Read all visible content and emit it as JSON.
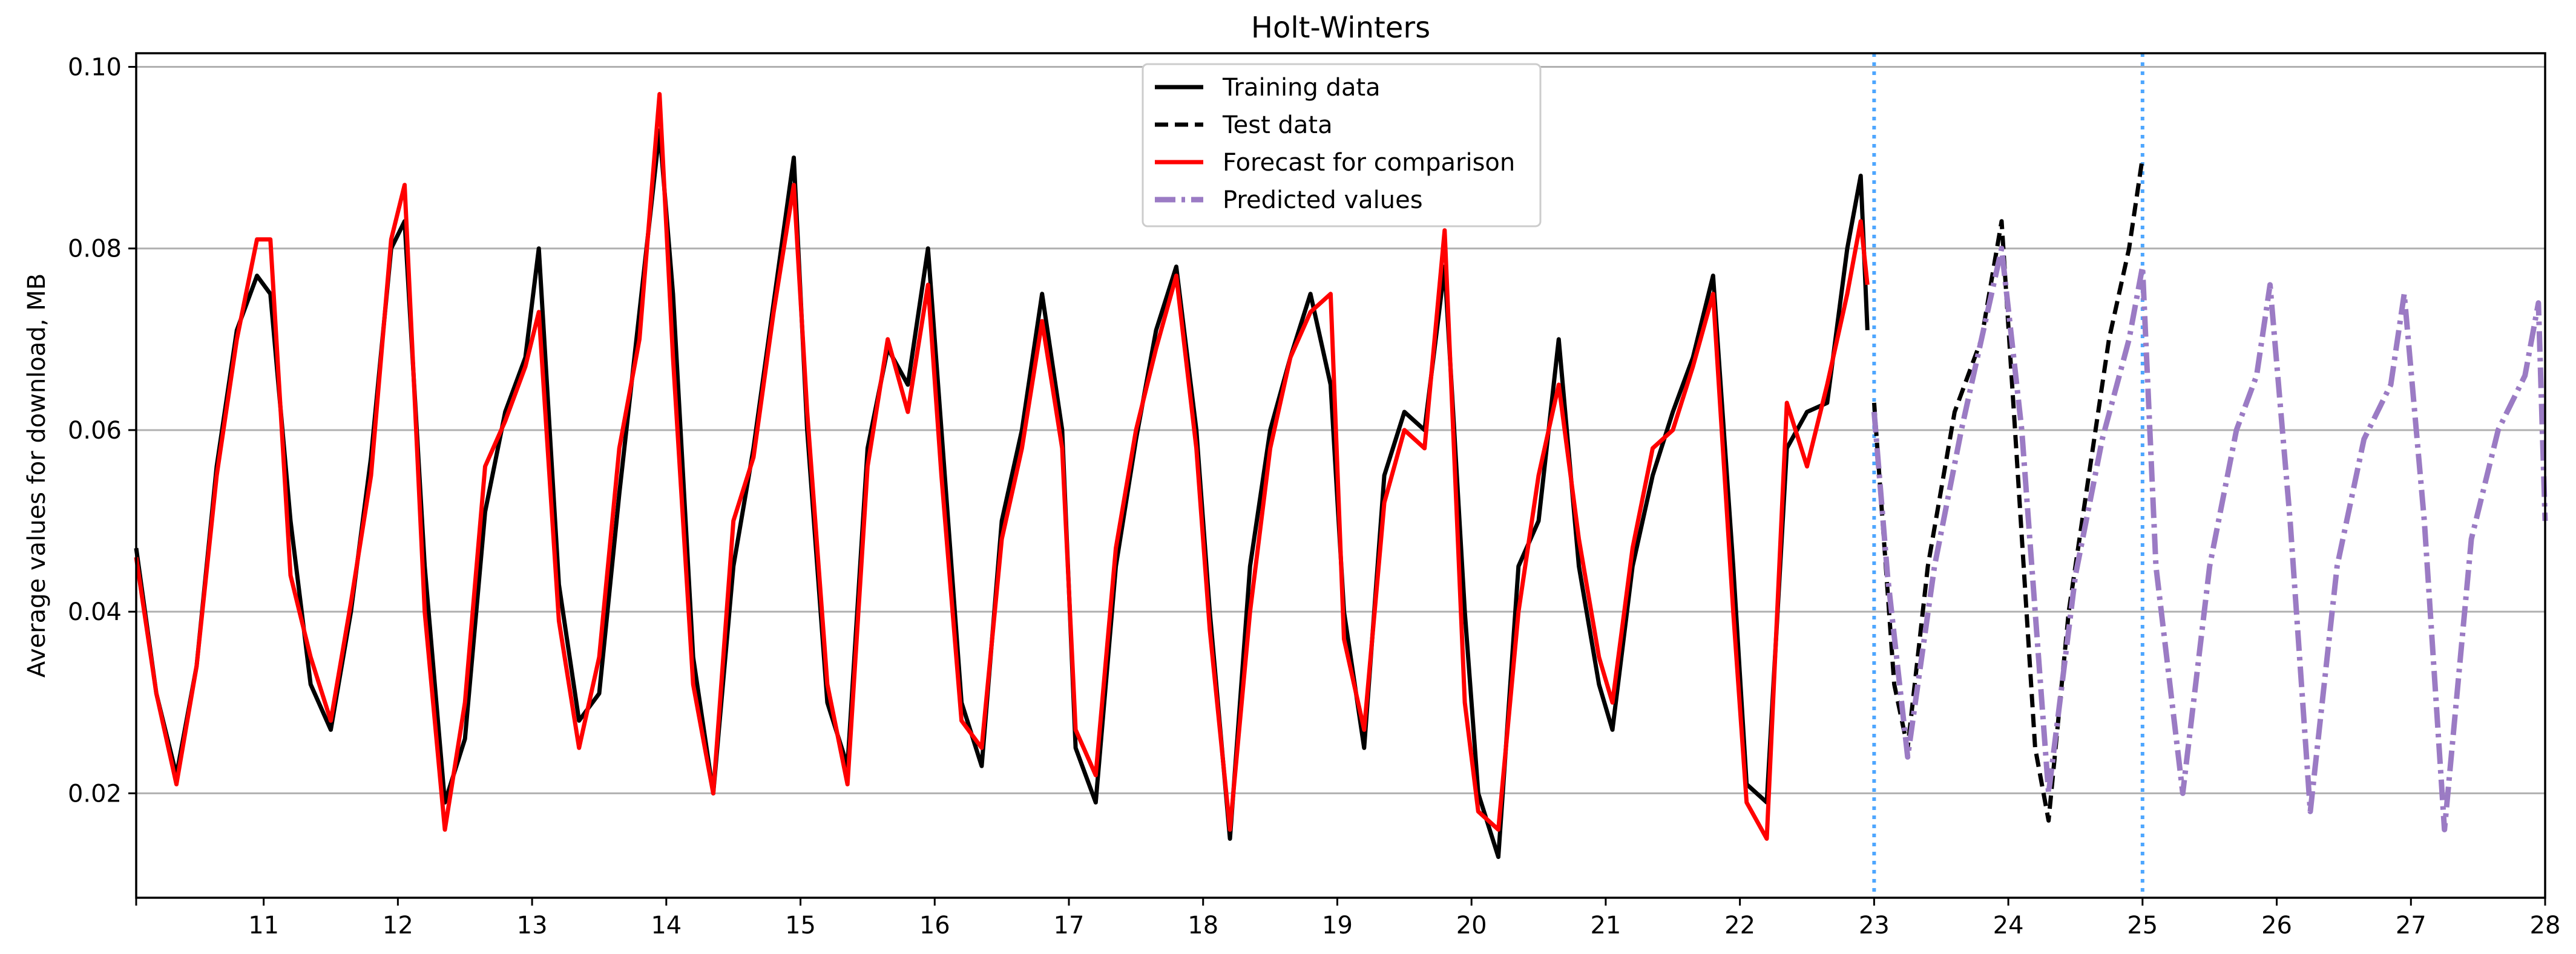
{
  "chart_data": {
    "type": "line",
    "title": "Holt-Winters",
    "xlabel": "",
    "ylabel": "Average values for download, MB",
    "xlim": [
      10.05,
      28
    ],
    "ylim": [
      0.0085,
      0.1015
    ],
    "xticks": [
      11,
      12,
      13,
      14,
      15,
      16,
      17,
      18,
      19,
      20,
      21,
      22,
      23,
      24,
      25,
      26,
      27,
      28
    ],
    "yticks": [
      0.02,
      0.04,
      0.06,
      0.08,
      0.1
    ],
    "ytick_labels": [
      "0.02",
      "0.04",
      "0.06",
      "0.08",
      "0.10"
    ],
    "grid": "horizontal",
    "legend_position": "upper center",
    "vlines": [
      {
        "x": 23.0,
        "color": "#4da6ff",
        "style": "dotted"
      },
      {
        "x": 25.0,
        "color": "#4da6ff",
        "style": "dotted"
      }
    ],
    "series": [
      {
        "name": "Training data",
        "color": "#000000",
        "style": "solid",
        "points": [
          [
            10.05,
            0.047
          ],
          [
            10.2,
            0.031
          ],
          [
            10.35,
            0.022
          ],
          [
            10.5,
            0.034
          ],
          [
            10.65,
            0.056
          ],
          [
            10.8,
            0.071
          ],
          [
            10.95,
            0.077
          ],
          [
            11.05,
            0.075
          ],
          [
            11.2,
            0.05
          ],
          [
            11.35,
            0.032
          ],
          [
            11.5,
            0.027
          ],
          [
            11.65,
            0.04
          ],
          [
            11.8,
            0.057
          ],
          [
            11.95,
            0.08
          ],
          [
            12.05,
            0.083
          ],
          [
            12.2,
            0.045
          ],
          [
            12.35,
            0.019
          ],
          [
            12.5,
            0.026
          ],
          [
            12.65,
            0.051
          ],
          [
            12.8,
            0.062
          ],
          [
            12.95,
            0.068
          ],
          [
            13.05,
            0.08
          ],
          [
            13.2,
            0.043
          ],
          [
            13.35,
            0.028
          ],
          [
            13.5,
            0.031
          ],
          [
            13.65,
            0.053
          ],
          [
            13.8,
            0.073
          ],
          [
            13.95,
            0.093
          ],
          [
            14.05,
            0.075
          ],
          [
            14.2,
            0.035
          ],
          [
            14.35,
            0.02
          ],
          [
            14.5,
            0.045
          ],
          [
            14.65,
            0.058
          ],
          [
            14.8,
            0.074
          ],
          [
            14.95,
            0.09
          ],
          [
            15.05,
            0.06
          ],
          [
            15.2,
            0.03
          ],
          [
            15.35,
            0.023
          ],
          [
            15.5,
            0.058
          ],
          [
            15.65,
            0.069
          ],
          [
            15.8,
            0.065
          ],
          [
            15.95,
            0.08
          ],
          [
            16.05,
            0.06
          ],
          [
            16.2,
            0.03
          ],
          [
            16.35,
            0.023
          ],
          [
            16.5,
            0.05
          ],
          [
            16.65,
            0.06
          ],
          [
            16.8,
            0.075
          ],
          [
            16.95,
            0.06
          ],
          [
            17.05,
            0.025
          ],
          [
            17.2,
            0.019
          ],
          [
            17.35,
            0.045
          ],
          [
            17.5,
            0.059
          ],
          [
            17.65,
            0.071
          ],
          [
            17.8,
            0.078
          ],
          [
            17.95,
            0.06
          ],
          [
            18.05,
            0.04
          ],
          [
            18.2,
            0.015
          ],
          [
            18.35,
            0.045
          ],
          [
            18.5,
            0.06
          ],
          [
            18.65,
            0.068
          ],
          [
            18.8,
            0.075
          ],
          [
            18.95,
            0.065
          ],
          [
            19.05,
            0.04
          ],
          [
            19.2,
            0.025
          ],
          [
            19.35,
            0.055
          ],
          [
            19.5,
            0.062
          ],
          [
            19.65,
            0.06
          ],
          [
            19.8,
            0.078
          ],
          [
            19.95,
            0.04
          ],
          [
            20.05,
            0.02
          ],
          [
            20.2,
            0.013
          ],
          [
            20.35,
            0.045
          ],
          [
            20.5,
            0.05
          ],
          [
            20.65,
            0.07
          ],
          [
            20.8,
            0.045
          ],
          [
            20.95,
            0.032
          ],
          [
            21.05,
            0.027
          ],
          [
            21.2,
            0.045
          ],
          [
            21.35,
            0.055
          ],
          [
            21.5,
            0.062
          ],
          [
            21.65,
            0.068
          ],
          [
            21.8,
            0.077
          ],
          [
            21.95,
            0.045
          ],
          [
            22.05,
            0.021
          ],
          [
            22.2,
            0.019
          ],
          [
            22.35,
            0.058
          ],
          [
            22.5,
            0.062
          ],
          [
            22.65,
            0.063
          ],
          [
            22.8,
            0.08
          ],
          [
            22.9,
            0.088
          ],
          [
            22.95,
            0.071
          ]
        ]
      },
      {
        "name": "Test data",
        "color": "#000000",
        "style": "dashed",
        "points": [
          [
            23.0,
            0.063
          ],
          [
            23.15,
            0.032
          ],
          [
            23.25,
            0.025
          ],
          [
            23.4,
            0.045
          ],
          [
            23.6,
            0.062
          ],
          [
            23.8,
            0.07
          ],
          [
            23.95,
            0.083
          ],
          [
            24.05,
            0.06
          ],
          [
            24.2,
            0.025
          ],
          [
            24.3,
            0.017
          ],
          [
            24.45,
            0.04
          ],
          [
            24.6,
            0.055
          ],
          [
            24.75,
            0.07
          ],
          [
            24.9,
            0.08
          ],
          [
            25.0,
            0.09
          ]
        ]
      },
      {
        "name": "Forecast for comparison",
        "color": "#ff0000",
        "style": "solid",
        "points": [
          [
            10.05,
            0.046
          ],
          [
            10.2,
            0.031
          ],
          [
            10.35,
            0.021
          ],
          [
            10.5,
            0.034
          ],
          [
            10.65,
            0.055
          ],
          [
            10.8,
            0.07
          ],
          [
            10.95,
            0.081
          ],
          [
            11.05,
            0.081
          ],
          [
            11.2,
            0.044
          ],
          [
            11.35,
            0.035
          ],
          [
            11.5,
            0.028
          ],
          [
            11.65,
            0.041
          ],
          [
            11.8,
            0.055
          ],
          [
            11.95,
            0.081
          ],
          [
            12.05,
            0.087
          ],
          [
            12.2,
            0.04
          ],
          [
            12.35,
            0.016
          ],
          [
            12.5,
            0.03
          ],
          [
            12.65,
            0.056
          ],
          [
            12.8,
            0.061
          ],
          [
            12.95,
            0.067
          ],
          [
            13.05,
            0.073
          ],
          [
            13.2,
            0.039
          ],
          [
            13.35,
            0.025
          ],
          [
            13.5,
            0.035
          ],
          [
            13.65,
            0.058
          ],
          [
            13.8,
            0.07
          ],
          [
            13.95,
            0.097
          ],
          [
            14.05,
            0.068
          ],
          [
            14.2,
            0.032
          ],
          [
            14.35,
            0.02
          ],
          [
            14.5,
            0.05
          ],
          [
            14.65,
            0.057
          ],
          [
            14.8,
            0.073
          ],
          [
            14.95,
            0.087
          ],
          [
            15.05,
            0.062
          ],
          [
            15.2,
            0.032
          ],
          [
            15.35,
            0.021
          ],
          [
            15.5,
            0.056
          ],
          [
            15.65,
            0.07
          ],
          [
            15.8,
            0.062
          ],
          [
            15.95,
            0.076
          ],
          [
            16.05,
            0.055
          ],
          [
            16.2,
            0.028
          ],
          [
            16.35,
            0.025
          ],
          [
            16.5,
            0.048
          ],
          [
            16.65,
            0.058
          ],
          [
            16.8,
            0.072
          ],
          [
            16.95,
            0.058
          ],
          [
            17.05,
            0.027
          ],
          [
            17.2,
            0.022
          ],
          [
            17.35,
            0.047
          ],
          [
            17.5,
            0.06
          ],
          [
            17.65,
            0.069
          ],
          [
            17.8,
            0.077
          ],
          [
            17.95,
            0.058
          ],
          [
            18.05,
            0.038
          ],
          [
            18.2,
            0.016
          ],
          [
            18.35,
            0.04
          ],
          [
            18.5,
            0.058
          ],
          [
            18.65,
            0.068
          ],
          [
            18.8,
            0.073
          ],
          [
            18.95,
            0.075
          ],
          [
            19.05,
            0.037
          ],
          [
            19.2,
            0.027
          ],
          [
            19.35,
            0.052
          ],
          [
            19.5,
            0.06
          ],
          [
            19.65,
            0.058
          ],
          [
            19.8,
            0.082
          ],
          [
            19.95,
            0.03
          ],
          [
            20.05,
            0.018
          ],
          [
            20.2,
            0.016
          ],
          [
            20.35,
            0.04
          ],
          [
            20.5,
            0.055
          ],
          [
            20.65,
            0.065
          ],
          [
            20.8,
            0.048
          ],
          [
            20.95,
            0.035
          ],
          [
            21.05,
            0.03
          ],
          [
            21.2,
            0.047
          ],
          [
            21.35,
            0.058
          ],
          [
            21.5,
            0.06
          ],
          [
            21.65,
            0.067
          ],
          [
            21.8,
            0.075
          ],
          [
            21.95,
            0.04
          ],
          [
            22.05,
            0.019
          ],
          [
            22.2,
            0.015
          ],
          [
            22.35,
            0.063
          ],
          [
            22.5,
            0.056
          ],
          [
            22.65,
            0.065
          ],
          [
            22.8,
            0.075
          ],
          [
            22.9,
            0.083
          ],
          [
            22.95,
            0.076
          ]
        ]
      },
      {
        "name": "Predicted values",
        "color": "#9b7bc4",
        "style": "dashdot",
        "points": [
          [
            23.0,
            0.062
          ],
          [
            23.1,
            0.044
          ],
          [
            23.25,
            0.024
          ],
          [
            23.45,
            0.045
          ],
          [
            23.65,
            0.06
          ],
          [
            23.8,
            0.07
          ],
          [
            23.95,
            0.08
          ],
          [
            24.1,
            0.06
          ],
          [
            24.3,
            0.02
          ],
          [
            24.5,
            0.044
          ],
          [
            24.7,
            0.059
          ],
          [
            24.9,
            0.07
          ],
          [
            25.0,
            0.078
          ],
          [
            25.1,
            0.045
          ],
          [
            25.3,
            0.02
          ],
          [
            25.5,
            0.045
          ],
          [
            25.7,
            0.06
          ],
          [
            25.85,
            0.066
          ],
          [
            25.95,
            0.076
          ],
          [
            26.1,
            0.05
          ],
          [
            26.25,
            0.018
          ],
          [
            26.45,
            0.045
          ],
          [
            26.65,
            0.059
          ],
          [
            26.85,
            0.065
          ],
          [
            26.95,
            0.075
          ],
          [
            27.1,
            0.05
          ],
          [
            27.25,
            0.016
          ],
          [
            27.45,
            0.048
          ],
          [
            27.65,
            0.06
          ],
          [
            27.85,
            0.066
          ],
          [
            27.95,
            0.074
          ],
          [
            28.0,
            0.05
          ]
        ]
      }
    ]
  }
}
